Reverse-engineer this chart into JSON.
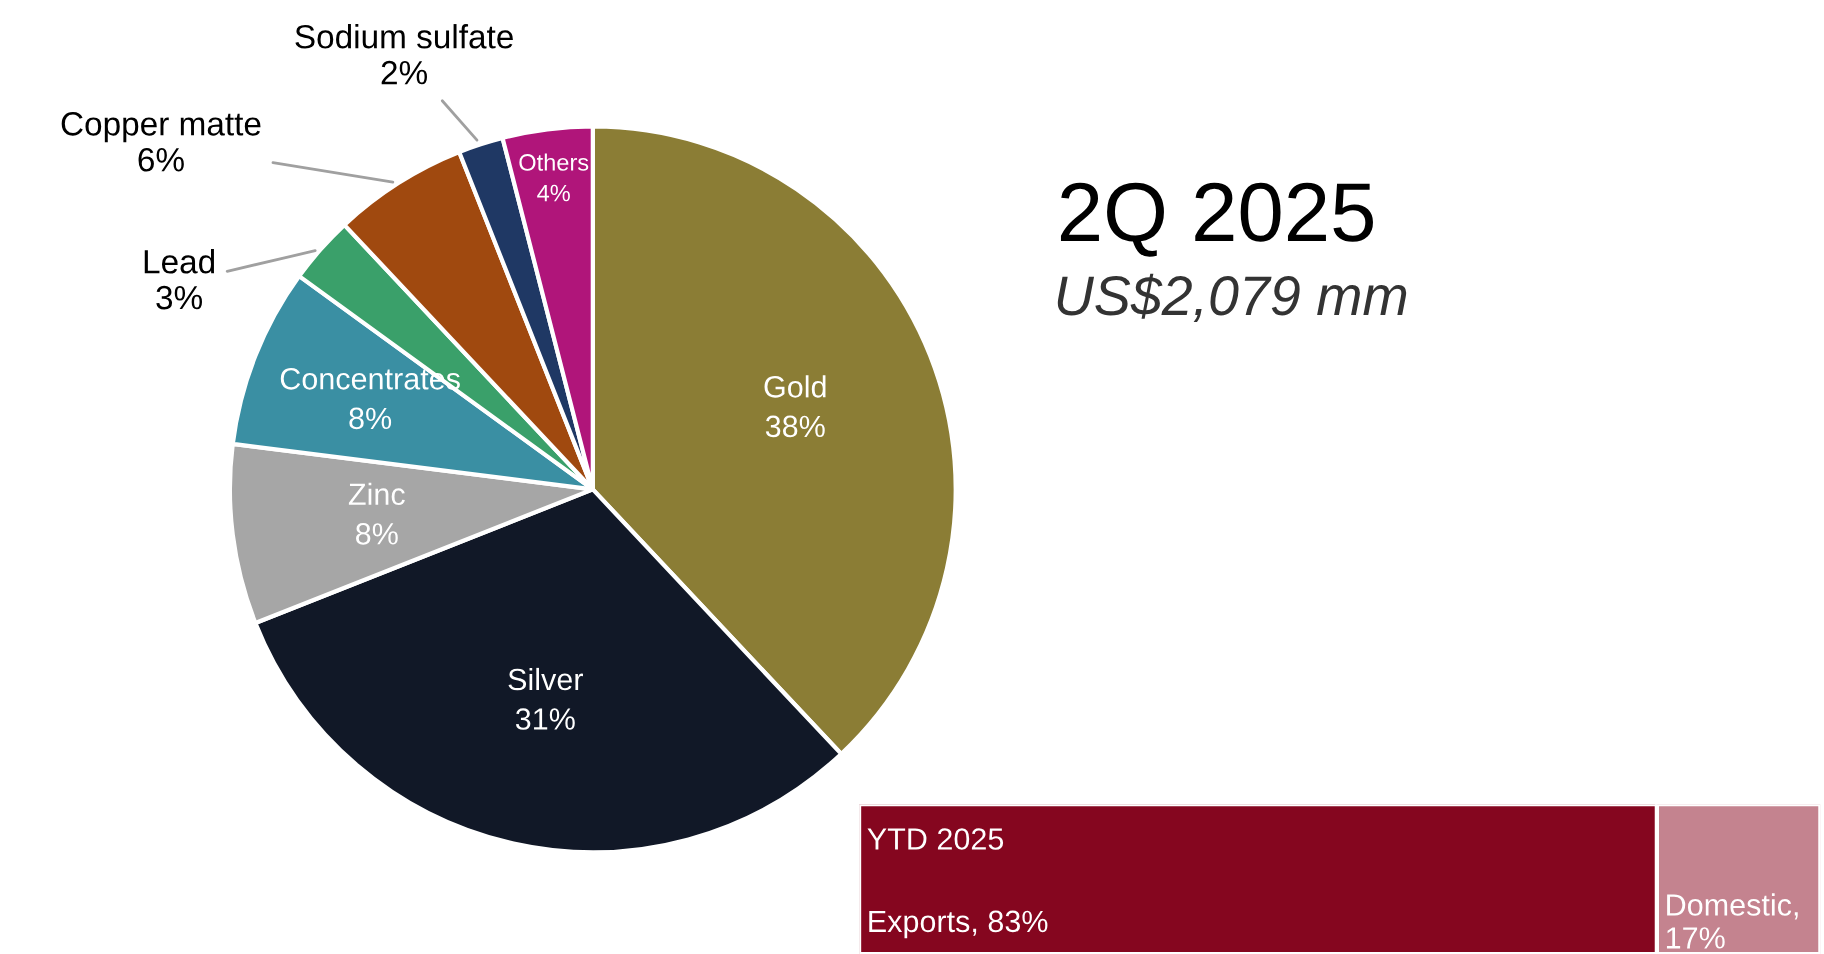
{
  "chart_data": [
    {
      "type": "pie",
      "title": "2Q 2025",
      "subtitle": "US$2,079 mm",
      "categories": [
        "Gold",
        "Silver",
        "Zinc",
        "Concentrates",
        "Lead",
        "Copper matte",
        "Sodium sulfate",
        "Others"
      ],
      "values": [
        38,
        31,
        8,
        8,
        3,
        6,
        2,
        4
      ],
      "value_labels": [
        "38%",
        "31%",
        "8%",
        "8%",
        "3%",
        "6%",
        "2%",
        "4%"
      ],
      "colors": [
        "#8b7d35",
        "#111827",
        "#a6a6a6",
        "#3a8fa3",
        "#3aa06a",
        "#a0490f",
        "#1f3864",
        "#b0157a"
      ]
    },
    {
      "type": "bar",
      "orientation": "horizontal",
      "stacked": true,
      "categories": [
        "YTD 2025"
      ],
      "series": [
        {
          "color": "#85061f",
          "values": [
            83
          ],
          "value_labels": [
            "Exports, 83%"
          ]
        },
        {
          "color": "#c4838f",
          "values": [
            17
          ],
          "value_labels": [
            "Domestic,\n17%"
          ]
        }
      ]
    }
  ]
}
